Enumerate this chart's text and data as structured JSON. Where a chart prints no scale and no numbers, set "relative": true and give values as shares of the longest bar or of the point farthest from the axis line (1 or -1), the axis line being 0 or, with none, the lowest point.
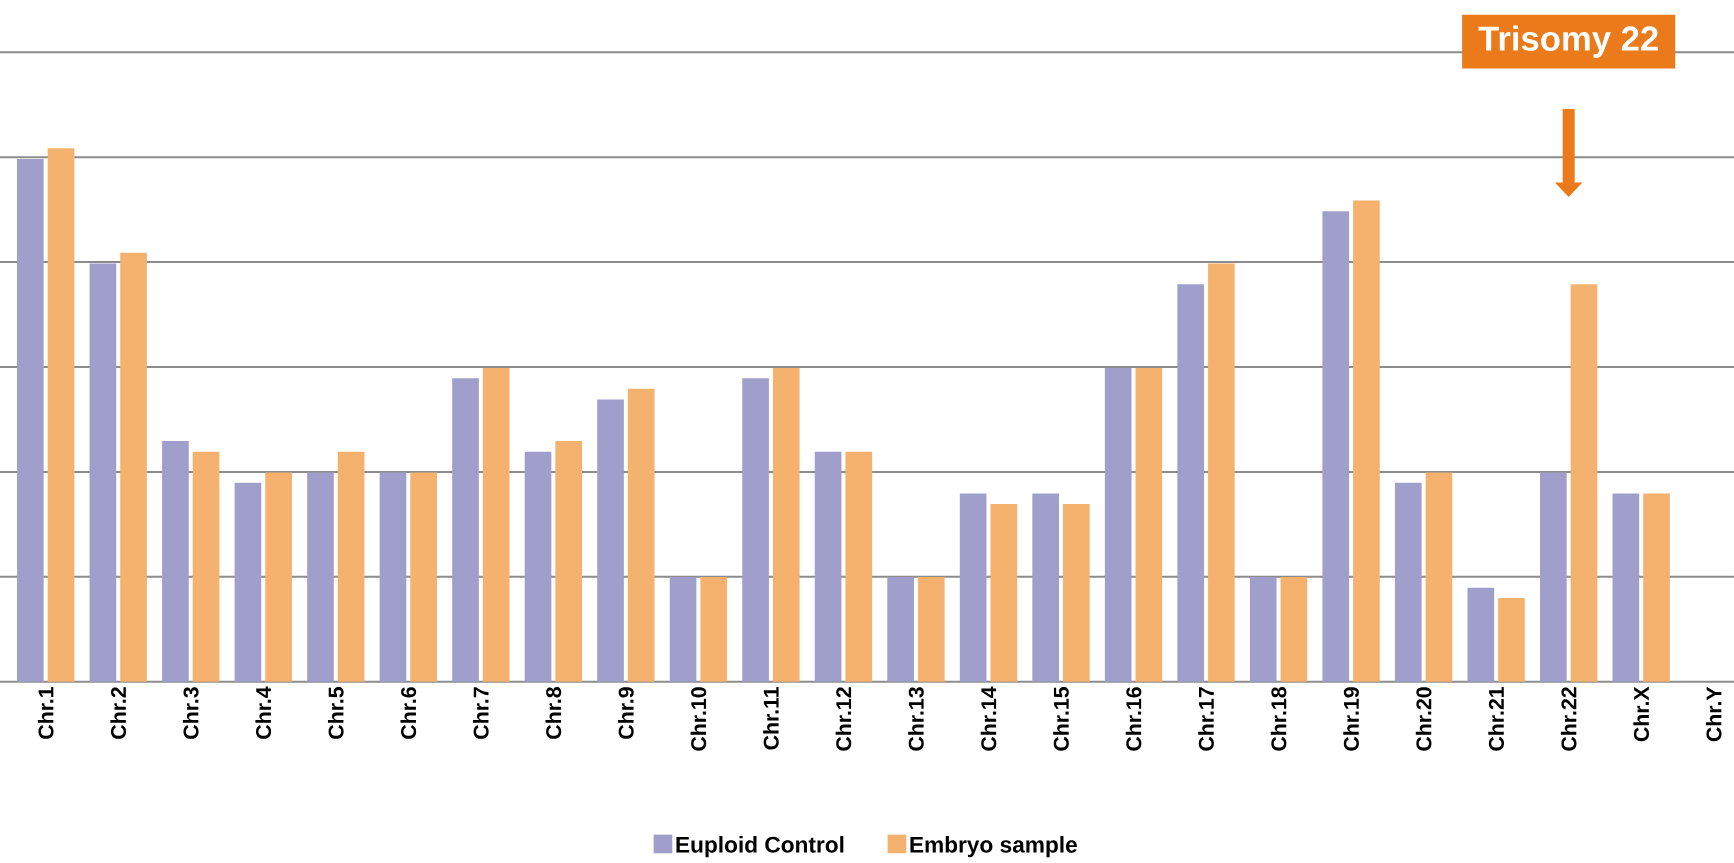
{
  "chart_data": {
    "type": "bar",
    "relative": true,
    "grid": "y",
    "legend": "bottom",
    "categories": [
      "Chr.1",
      "Chr.2",
      "Chr.3",
      "Chr.4",
      "Chr.5",
      "Chr.6",
      "Chr.7",
      "Chr.8",
      "Chr.9",
      "Chr.10",
      "Chr.11",
      "Chr.12",
      "Chr.13",
      "Chr.14",
      "Chr.15",
      "Chr.16",
      "Chr.17",
      "Chr.18",
      "Chr.19",
      "Chr.20",
      "Chr.21",
      "Chr.22",
      "Chr.X",
      "Chr.Y"
    ],
    "series": [
      {
        "name": "Euploid Control",
        "color": "#a09fcc",
        "values": [
          0.98,
          0.784,
          0.451,
          0.373,
          0.392,
          0.392,
          0.569,
          0.431,
          0.529,
          0.196,
          0.569,
          0.431,
          0.196,
          0.353,
          0.353,
          0.588,
          0.745,
          0.196,
          0.882,
          0.373,
          0.176,
          0.392,
          0.353,
          null
        ]
      },
      {
        "name": "Embryo sample",
        "color": "#f5b26e",
        "values": [
          1,
          0.804,
          0.431,
          0.392,
          0.431,
          0.392,
          0.588,
          0.451,
          0.549,
          0.196,
          0.588,
          0.431,
          0.196,
          0.333,
          0.333,
          0.588,
          0.784,
          0.196,
          0.902,
          0.392,
          0.157,
          0.745,
          0.353,
          null
        ]
      }
    ],
    "annotations": [
      "Trisomy 22"
    ]
  }
}
